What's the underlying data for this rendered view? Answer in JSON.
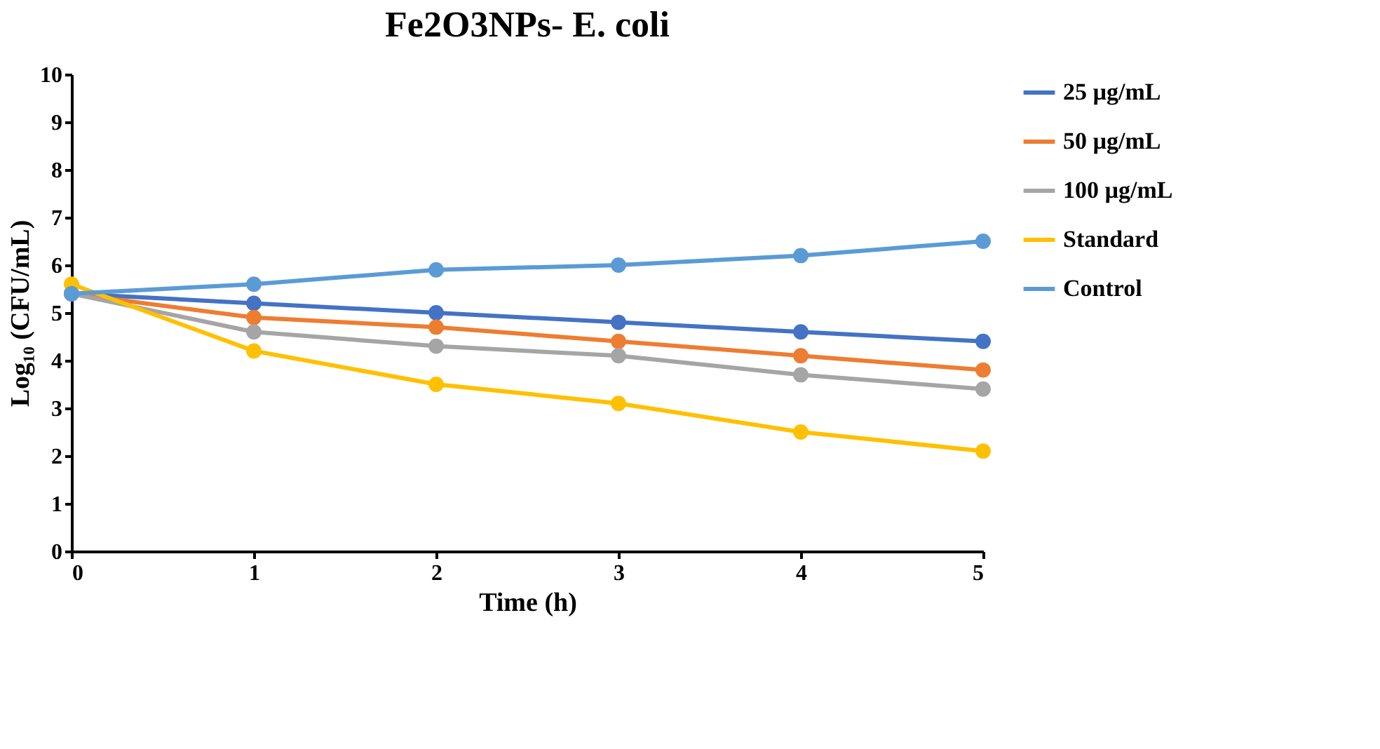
{
  "chart_data": {
    "type": "line",
    "title": "Fe2O3NPs- E. coli",
    "xlabel": "Time (h)",
    "ylabel": "Log₁₀ (CFU/mL)",
    "x": [
      0,
      1,
      2,
      3,
      4,
      5
    ],
    "xlim": [
      0,
      5
    ],
    "xticks": [
      0,
      1,
      2,
      3,
      4,
      5
    ],
    "ylim": [
      0,
      10
    ],
    "yticks": [
      0,
      1,
      2,
      3,
      4,
      5,
      6,
      7,
      8,
      9,
      10
    ],
    "grid": false,
    "legend": "right",
    "marker": "circle",
    "line_style": "solid",
    "series": [
      {
        "name": "25 µg/mL",
        "color": "#4472c4",
        "values": [
          5.4,
          5.2,
          5.0,
          4.8,
          4.6,
          4.4
        ]
      },
      {
        "name": "50 µg/mL",
        "color": "#ed7d31",
        "values": [
          5.4,
          4.9,
          4.7,
          4.4,
          4.1,
          3.8
        ]
      },
      {
        "name": "100 µg/mL",
        "color": "#a5a5a5",
        "values": [
          5.4,
          4.6,
          4.3,
          4.1,
          3.7,
          3.4
        ]
      },
      {
        "name": "Standard",
        "color": "#ffc000",
        "values": [
          5.6,
          4.2,
          3.5,
          3.1,
          2.5,
          2.1
        ]
      },
      {
        "name": "Control",
        "color": "#5b9bd5",
        "values": [
          5.4,
          5.6,
          5.9,
          6.0,
          6.2,
          6.5
        ]
      }
    ]
  }
}
